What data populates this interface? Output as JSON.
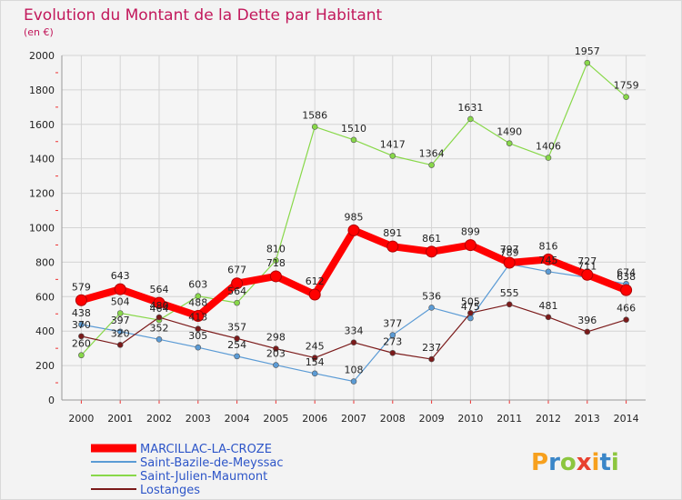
{
  "chart_data": {
    "type": "line",
    "title": "Evolution du Montant de la Dette par Habitant",
    "subtitle": "(en €)",
    "x": [
      "2000",
      "2001",
      "2002",
      "2003",
      "2004",
      "2005",
      "2006",
      "2007",
      "2008",
      "2009",
      "2010",
      "2011",
      "2012",
      "2013",
      "2014"
    ],
    "ylim": [
      0,
      2000
    ],
    "yticks": [
      0,
      200,
      400,
      600,
      800,
      1000,
      1200,
      1400,
      1600,
      1800,
      2000
    ],
    "grid": true,
    "legend_position": "bottom-left",
    "series": [
      {
        "name": "MARCILLAC-LA-CROZE",
        "color": "#ff0000",
        "values": [
          579,
          643,
          564,
          488,
          677,
          718,
          612,
          985,
          891,
          861,
          899,
          797,
          816,
          727,
          638
        ],
        "labels": [
          "579",
          "643",
          "564",
          "488",
          "677",
          "718",
          "612",
          "985",
          "891",
          "861",
          "899",
          "797",
          "816",
          "727",
          "638"
        ]
      },
      {
        "name": "Saint-Bazile-de-Meyssac",
        "color": "#5b9bd5",
        "values": [
          438,
          397,
          352,
          305,
          254,
          203,
          154,
          108,
          377,
          536,
          475,
          789,
          745,
          711,
          674
        ],
        "labels": [
          "438",
          "397",
          "352",
          "305",
          "254",
          "203",
          "154",
          "108",
          "377",
          "536",
          "475",
          "789",
          "745",
          "711",
          "674"
        ]
      },
      {
        "name": "Saint-Julien-Maumont",
        "color": "#88d849",
        "values": [
          260,
          504,
          464,
          603,
          564,
          810,
          1586,
          1510,
          1417,
          1364,
          1631,
          1490,
          1406,
          1957,
          1759
        ],
        "labels": [
          "260",
          "504",
          "464",
          "603",
          "564",
          "810",
          "1586",
          "1510",
          "1417",
          "1364",
          "1631",
          "1490",
          "1406",
          "1957",
          "1759"
        ]
      },
      {
        "name": "Lostanges",
        "color": "#7b1a1a",
        "values": [
          370,
          320,
          480,
          413,
          357,
          298,
          245,
          334,
          273,
          237,
          505,
          555,
          481,
          396,
          466
        ],
        "labels": [
          "370",
          "320",
          "480",
          "413",
          "357",
          "298",
          "245",
          "334",
          "273",
          "237",
          "505",
          "555",
          "481",
          "396",
          "466"
        ]
      }
    ]
  },
  "brand": {
    "letters": [
      "P",
      "r",
      "o",
      "x",
      "i",
      "t",
      "i"
    ],
    "colors": [
      "#f7a01d",
      "#3a86c8",
      "#8cc63f",
      "#e8412f",
      "#f7a01d",
      "#3a86c8",
      "#8cc63f"
    ]
  }
}
